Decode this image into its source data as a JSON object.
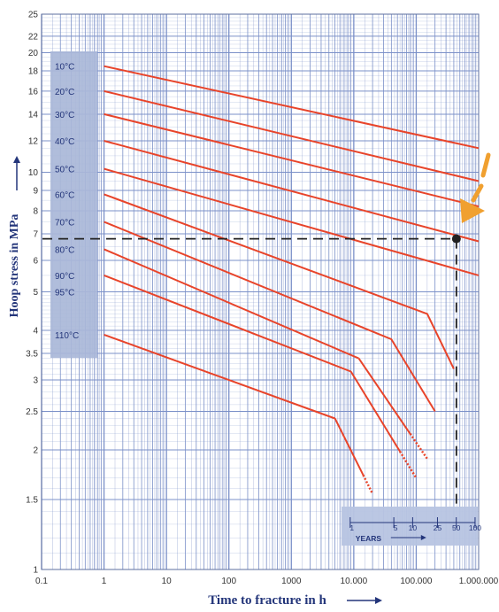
{
  "chart_data": {
    "type": "line",
    "xlabel": "Time to fracture in h",
    "ylabel": "Hoop stress in MPa",
    "x_scale": "log",
    "y_scale": "log",
    "xlim": [
      0.1,
      1000000
    ],
    "ylim": [
      1,
      25
    ],
    "grid": true,
    "x_ticks": [
      {
        "value": 0.1,
        "label": "0.1"
      },
      {
        "value": 1,
        "label": "1"
      },
      {
        "value": 10,
        "label": "10"
      },
      {
        "value": 100,
        "label": "100"
      },
      {
        "value": 1000,
        "label": "1000"
      },
      {
        "value": 10000,
        "label": "10.000"
      },
      {
        "value": 100000,
        "label": "100.000"
      },
      {
        "value": 1000000,
        "label": "1.000.000"
      }
    ],
    "y_ticks": [
      {
        "value": 1,
        "label": "1"
      },
      {
        "value": 1.5,
        "label": "1.5"
      },
      {
        "value": 2,
        "label": "2"
      },
      {
        "value": 2.5,
        "label": "2.5"
      },
      {
        "value": 3,
        "label": "3"
      },
      {
        "value": 3.5,
        "label": "3.5"
      },
      {
        "value": 4,
        "label": "4"
      },
      {
        "value": 5,
        "label": "5"
      },
      {
        "value": 6,
        "label": "6"
      },
      {
        "value": 7,
        "label": "7"
      },
      {
        "value": 8,
        "label": "8"
      },
      {
        "value": 9,
        "label": "9"
      },
      {
        "value": 10,
        "label": "10"
      },
      {
        "value": 12,
        "label": "12"
      },
      {
        "value": 14,
        "label": "14"
      },
      {
        "value": 16,
        "label": "16"
      },
      {
        "value": 18,
        "label": "18"
      },
      {
        "value": 20,
        "label": "20"
      },
      {
        "value": 22,
        "label": "22"
      },
      {
        "value": 25,
        "label": "25"
      }
    ],
    "series": [
      {
        "name": "10°C",
        "label_y": 18.5,
        "points": [
          [
            1,
            18.5
          ],
          [
            1000000,
            11.5
          ]
        ]
      },
      {
        "name": "20°C",
        "label_y": 16.0,
        "points": [
          [
            1,
            16.0
          ],
          [
            1000000,
            9.5
          ]
        ]
      },
      {
        "name": "30°C",
        "label_y": 14.0,
        "points": [
          [
            1,
            14.0
          ],
          [
            1000000,
            8.2
          ]
        ]
      },
      {
        "name": "40°C",
        "label_y": 12.0,
        "points": [
          [
            1,
            12.0
          ],
          [
            1000000,
            6.7
          ]
        ]
      },
      {
        "name": "50°C",
        "label_y": 10.2,
        "points": [
          [
            1,
            10.2
          ],
          [
            1000000,
            5.5
          ]
        ]
      },
      {
        "name": "60°C",
        "label_y": 8.8,
        "points": [
          [
            1,
            8.8
          ],
          [
            150000,
            4.4
          ],
          [
            400000,
            3.2
          ]
        ]
      },
      {
        "name": "70°C",
        "label_y": 7.5,
        "points": [
          [
            1,
            7.5
          ],
          [
            40000,
            3.8
          ],
          [
            200000,
            2.5
          ]
        ]
      },
      {
        "name": "80°C",
        "label_y": 6.4,
        "points": [
          [
            1,
            6.4
          ],
          [
            12000,
            3.4
          ],
          [
            150000,
            1.9
          ]
        ]
      },
      {
        "name": "90°C",
        "label_y": 5.5,
        "points": [
          [
            1,
            5.5
          ],
          [
            9000,
            3.15
          ],
          [
            100000,
            1.7
          ]
        ]
      },
      {
        "name": "95°C",
        "label_y": 5.0,
        "points": [
          [
            1,
            5.0
          ]
        ]
      },
      {
        "name": "110°C",
        "label_y": 3.9,
        "points": [
          [
            1,
            3.9
          ],
          [
            5000,
            2.4
          ],
          [
            20000,
            1.55
          ]
        ]
      }
    ],
    "design_line": {
      "stress": 6.8,
      "time": 440000
    },
    "years_scale": {
      "label": "YEARS",
      "ticks": [
        {
          "years": 1,
          "label": "1"
        },
        {
          "years": 5,
          "label": "5"
        },
        {
          "years": 10,
          "label": "10"
        },
        {
          "years": 25,
          "label": "25"
        },
        {
          "years": 50,
          "label": "50"
        },
        {
          "years": 100,
          "label": "100"
        }
      ]
    },
    "colors": {
      "series": "#e8442a",
      "grid": "#7b90c8",
      "label_panel": "#a9b7d8",
      "years_panel": "#b7c4e2",
      "axis_text": "#23357a",
      "arrow": "#f0a030"
    }
  }
}
